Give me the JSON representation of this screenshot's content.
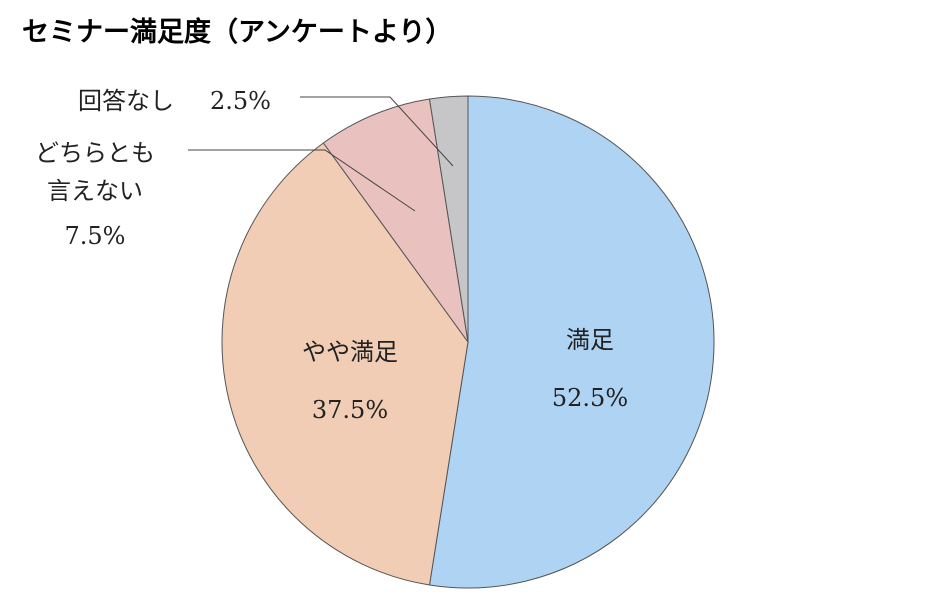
{
  "chart_data": {
    "type": "pie",
    "title": "セミナー満足度（アンケートより）",
    "categories": [
      "満足",
      "やや満足",
      "どちらとも\n言えない",
      "回答なし"
    ],
    "values": [
      52.5,
      37.5,
      7.5,
      2.5
    ],
    "value_labels": [
      "52.5%",
      "37.5%",
      "7.5%",
      "2.5%"
    ],
    "colors": [
      "#afd4f3",
      "#f0cdb4",
      "#e9c1bf",
      "#c6c6c9"
    ]
  }
}
